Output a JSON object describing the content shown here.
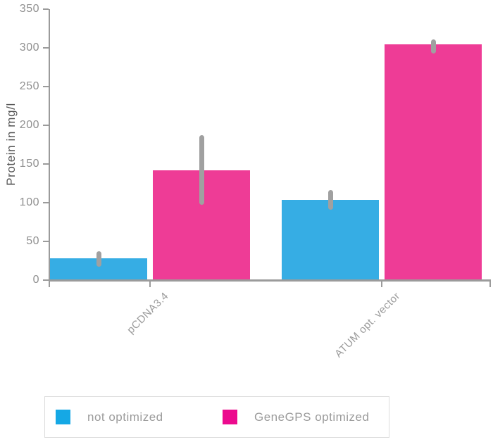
{
  "page": {
    "background": "#ffffff"
  },
  "chart_data": {
    "type": "bar",
    "title": "",
    "xlabel": "",
    "ylabel": "Protein in mg/l",
    "categories": [
      "pCDNA3.4",
      "ATUM opt. vector"
    ],
    "series": [
      {
        "name": "not optimized",
        "bar_color": "#36ade4",
        "legend_color": "#15a8e5",
        "values": [
          28,
          104
        ],
        "error_ranges": [
          [
            17,
            37
          ],
          [
            91,
            116
          ]
        ]
      },
      {
        "name": "GeneGPS optimized",
        "bar_color": "#ee3c96",
        "legend_color": "#ec0a8e",
        "values": [
          142,
          305
        ],
        "error_ranges": [
          [
            97,
            187
          ],
          [
            293,
            311
          ]
        ]
      }
    ],
    "ylim": [
      0,
      350
    ],
    "yticks": [
      0,
      50,
      100,
      150,
      200,
      250,
      300,
      350
    ],
    "grid": false,
    "legend_position": "bottom",
    "error_bar_color": "#a0a0a0",
    "axis_color": "#9b9b9b",
    "tick_label_color": "#8f8f8f",
    "x_label_color": "#9a9a9a",
    "y_title_color": "#555555"
  },
  "legend": {
    "items": [
      {
        "label": "not optimized",
        "color": "#15a8e5"
      },
      {
        "label": "GeneGPS optimized",
        "color": "#ec0a8e"
      }
    ],
    "border_color": "#dcdcdc",
    "text_color": "#9b9b9b"
  }
}
